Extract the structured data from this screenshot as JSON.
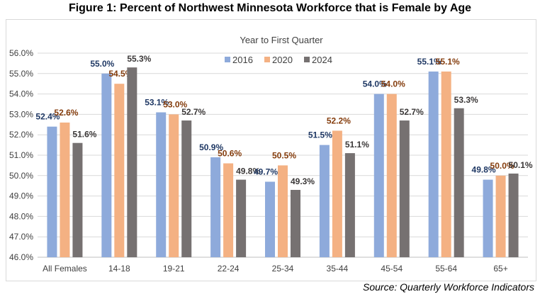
{
  "figure_title": "Figure 1: Percent of Northwest Minnesota Workforce that is Female by Age",
  "source": "Source: Quarterly Workforce Indicators",
  "chart_data": {
    "type": "bar",
    "title": "Year to First Quarter",
    "categories": [
      "All Females",
      "14-18",
      "19-21",
      "22-24",
      "25-34",
      "35-44",
      "45-54",
      "55-64",
      "65+"
    ],
    "series": [
      {
        "name": "2016",
        "color": "#8eaadb",
        "label_color": "#1f3864",
        "values": [
          52.4,
          55.0,
          53.1,
          50.9,
          49.7,
          51.5,
          54.0,
          55.1,
          49.8
        ],
        "labels": [
          "52.4%",
          "55.0%",
          "53.1%",
          "50.9%",
          "49.7%",
          "51.5%",
          "54.0%",
          "55.1%",
          "49.8%"
        ]
      },
      {
        "name": "2020",
        "color": "#f4b183",
        "label_color": "#843c0c",
        "values": [
          52.6,
          54.5,
          53.0,
          50.6,
          50.5,
          52.2,
          54.0,
          55.1,
          50.0
        ],
        "labels": [
          "52.6%",
          "54.5%",
          "53.0%",
          "50.6%",
          "50.5%",
          "52.2%",
          "54.0%",
          "55.1%",
          "50.0%"
        ]
      },
      {
        "name": "2024",
        "color": "#767171",
        "label_color": "#3b3838",
        "values": [
          51.6,
          55.3,
          52.7,
          49.8,
          49.3,
          51.1,
          52.7,
          53.3,
          50.1
        ],
        "labels": [
          "51.6%",
          "55.3%",
          "52.7%",
          "49.8%",
          "49.3%",
          "51.1%",
          "52.7%",
          "53.3%",
          "50.1%"
        ]
      }
    ],
    "ylim": [
      46.0,
      56.0
    ],
    "yticks": [
      "46.0%",
      "47.0%",
      "48.0%",
      "49.0%",
      "50.0%",
      "51.0%",
      "52.0%",
      "53.0%",
      "54.0%",
      "55.0%",
      "56.0%"
    ],
    "grid": true,
    "legend_position": "top-center"
  }
}
